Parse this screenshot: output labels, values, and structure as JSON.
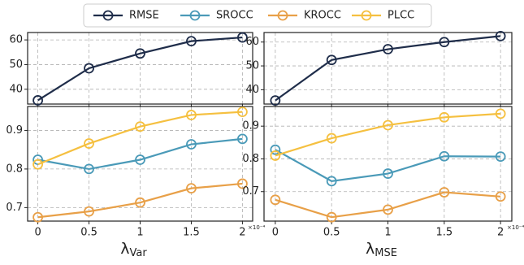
{
  "chart_data": [
    {
      "type": "line",
      "x": [
        0,
        0.5,
        1,
        1.5,
        2
      ],
      "xlim": [
        -0.1,
        2.1
      ],
      "xticks": [
        0,
        0.5,
        1,
        1.5,
        2
      ],
      "ylim": [
        34,
        63
      ],
      "yticks": [
        40,
        50,
        60
      ],
      "grid": true,
      "series": [
        {
          "name": "RMSE",
          "color": "#1f2d4a",
          "values": [
            35.5,
            48.5,
            54.5,
            59.5,
            61
          ]
        }
      ]
    },
    {
      "type": "line",
      "x": [
        0,
        0.5,
        1,
        1.5,
        2
      ],
      "xlim": [
        -0.1,
        2.1
      ],
      "xticks": [
        0,
        0.5,
        1,
        1.5,
        2
      ],
      "ylim": [
        0.665,
        0.962
      ],
      "yticks": [
        0.7,
        0.8,
        0.9
      ],
      "grid": true,
      "x_label": "λ",
      "x_label_subscript": "Var",
      "x_offset_label": "×10⁻⁴",
      "series": [
        {
          "name": "SROCC",
          "color": "#4a9ab8",
          "values": [
            0.824,
            0.8,
            0.824,
            0.864,
            0.878
          ]
        },
        {
          "name": "KROCC",
          "color": "#e8a048",
          "values": [
            0.675,
            0.69,
            0.713,
            0.75,
            0.762
          ]
        },
        {
          "name": "PLCC",
          "color": "#f5c040",
          "values": [
            0.812,
            0.866,
            0.91,
            0.94,
            0.948
          ]
        }
      ]
    },
    {
      "type": "line",
      "x": [
        0,
        0.5,
        1,
        1.5,
        2
      ],
      "xlim": [
        -0.1,
        2.1
      ],
      "xticks": [
        0,
        0.5,
        1,
        1.5,
        2
      ],
      "ylim": [
        34,
        64
      ],
      "yticks": [
        40,
        50,
        60
      ],
      "grid": true,
      "series": [
        {
          "name": "RMSE",
          "color": "#1f2d4a",
          "values": [
            35.5,
            52.5,
            57,
            60,
            62.5
          ]
        }
      ]
    },
    {
      "type": "line",
      "x": [
        0,
        0.5,
        1,
        1.5,
        2
      ],
      "xlim": [
        -0.1,
        2.1
      ],
      "xticks": [
        0,
        0.5,
        1,
        1.5,
        2
      ],
      "ylim": [
        0.61,
        0.96
      ],
      "yticks": [
        0.7,
        0.8,
        0.9
      ],
      "grid": true,
      "x_label": "λ",
      "x_label_subscript": "MSE",
      "x_offset_label": "×10⁻⁴",
      "series": [
        {
          "name": "SROCC",
          "color": "#4a9ab8",
          "values": [
            0.828,
            0.732,
            0.755,
            0.808,
            0.807
          ]
        },
        {
          "name": "KROCC",
          "color": "#e8a048",
          "values": [
            0.675,
            0.622,
            0.645,
            0.698,
            0.685
          ]
        },
        {
          "name": "PLCC",
          "color": "#f5c040",
          "values": [
            0.81,
            0.863,
            0.903,
            0.927,
            0.938
          ]
        }
      ]
    }
  ]
}
